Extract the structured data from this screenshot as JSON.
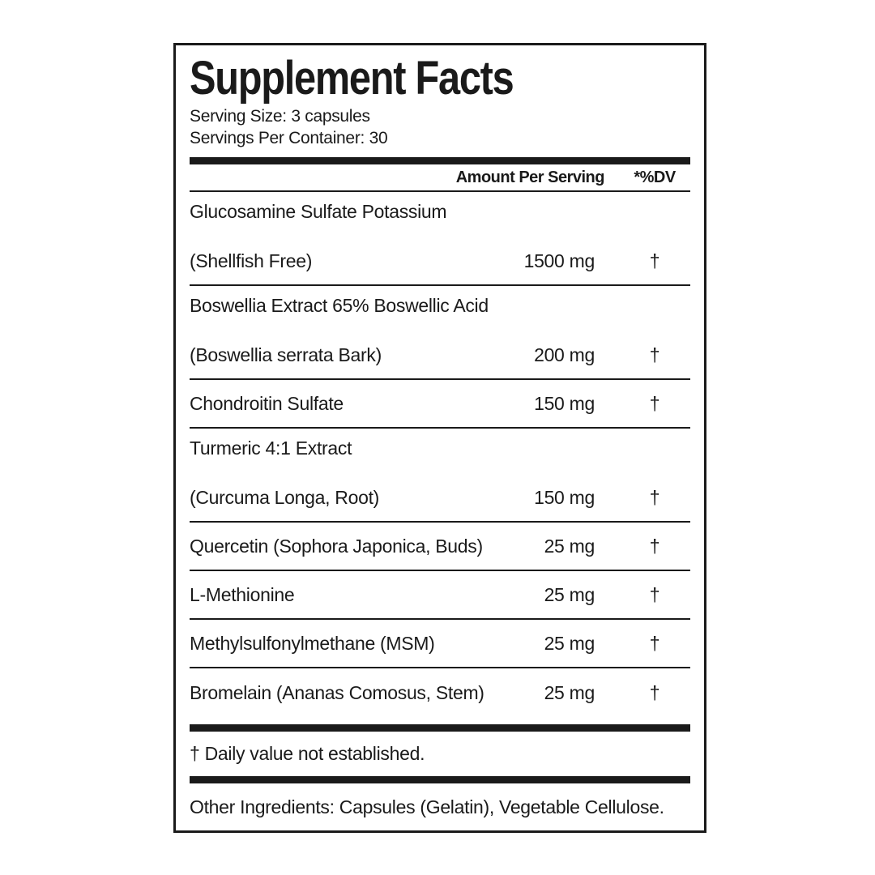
{
  "label": {
    "title": "Supplement Facts",
    "serving_size": "Serving Size: 3 capsules",
    "servings_per_container": "Servings Per Container: 30",
    "columns": {
      "amount_header": "Amount Per Serving",
      "dv_header": "*%DV"
    },
    "rows": [
      {
        "name_line1": "Glucosamine Sulfate Potassium",
        "name_line2": "(Shellfish Free)",
        "amount": "1500 mg",
        "dv": "†"
      },
      {
        "name_line1": "Boswellia Extract 65% Boswellic Acid",
        "name_line2": "(Boswellia serrata Bark)",
        "amount": "200 mg",
        "dv": "†"
      },
      {
        "name_line1": "Chondroitin Sulfate",
        "amount": "150 mg",
        "dv": "†"
      },
      {
        "name_line1": "Turmeric 4:1 Extract",
        "name_line2": "(Curcuma Longa, Root)",
        "amount": "150 mg",
        "dv": "†"
      },
      {
        "name_line1": "Quercetin (Sophora Japonica, Buds)",
        "amount": "25 mg",
        "dv": "†"
      },
      {
        "name_line1": "L-Methionine",
        "amount": "25 mg",
        "dv": "†"
      },
      {
        "name_line1": "Methylsulfonylmethane (MSM)",
        "amount": "25 mg",
        "dv": "†"
      },
      {
        "name_line1": "Bromelain (Ananas Comosus, Stem)",
        "amount": "25 mg",
        "dv": "†"
      }
    ],
    "footnote": "† Daily value not established.",
    "other_ingredients": "Other Ingredients: Capsules (Gelatin), Vegetable Cellulose.",
    "colors": {
      "text": "#1a1a1a",
      "border": "#1a1a1a",
      "background": "#ffffff"
    }
  }
}
